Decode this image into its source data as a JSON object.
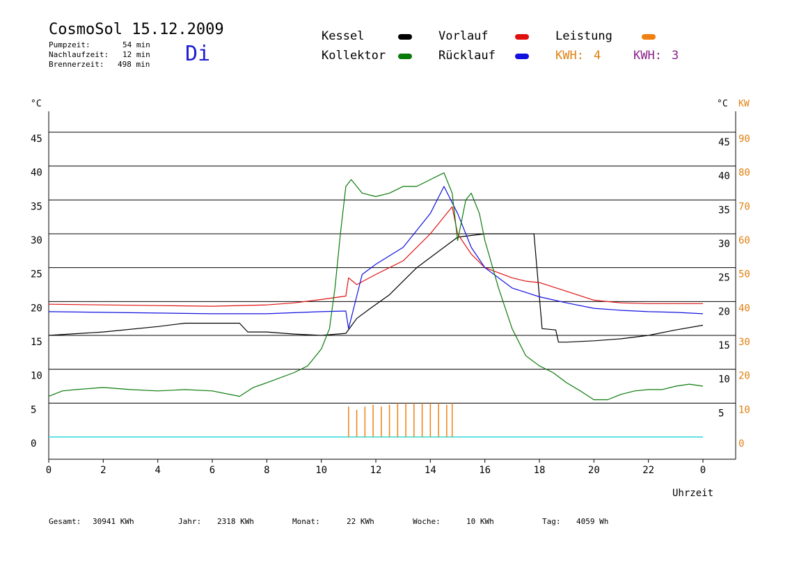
{
  "header": {
    "title": "CosmoSol 15.12.2009",
    "day": "Di",
    "stats": [
      {
        "label": "Pumpzeit:",
        "value": "54 min"
      },
      {
        "label": "Nachlaufzeit:",
        "value": "12 min"
      },
      {
        "label": "Brennerzeit:",
        "value": "498 min"
      }
    ]
  },
  "legend": [
    {
      "label": "Kessel",
      "color": "#000000"
    },
    {
      "label": "Kollektor",
      "color": "#0a7a0a"
    },
    {
      "label": "Vorlauf",
      "color": "#e01010"
    },
    {
      "label": "Rücklauf",
      "color": "#1010e0"
    },
    {
      "label": "Leistung",
      "color": "#f08010"
    }
  ],
  "kwh": [
    {
      "label": "KWH:",
      "value": "4",
      "color": "#e08010"
    },
    {
      "label": "KWH:",
      "value": "3",
      "color": "#8a208a"
    }
  ],
  "axes": {
    "left_unit": "°C",
    "right_unit": "°C",
    "right2_unit": "KW",
    "y_ticks": [
      0,
      5,
      10,
      15,
      20,
      25,
      30,
      35,
      40,
      45
    ],
    "y_ticks_right": [
      5,
      10,
      15,
      20,
      25,
      30,
      35,
      40,
      45
    ],
    "kw_ticks": [
      0,
      10,
      20,
      30,
      40,
      50,
      60,
      70,
      80,
      90
    ],
    "x_ticks": [
      "0",
      "2",
      "4",
      "6",
      "8",
      "10",
      "12",
      "14",
      "16",
      "18",
      "20",
      "22",
      "0"
    ],
    "x_label": "Uhrzeit",
    "axis_color": "#000000",
    "kw_color": "#e08010"
  },
  "footer": [
    {
      "label": "Gesamt:",
      "value": "30941 KWh"
    },
    {
      "label": "Jahr:",
      "value": "2318 KWh"
    },
    {
      "label": "Monat:",
      "value": "22 KWh"
    },
    {
      "label": "Woche:",
      "value": "10 KWh"
    },
    {
      "label": "Tag:",
      "value": "4059 Wh"
    }
  ],
  "chart_data": {
    "type": "line",
    "title": "CosmoSol 15.12.2009",
    "xlabel": "Uhrzeit",
    "ylabel": "°C",
    "y2label": "KW",
    "xlim": [
      0,
      24
    ],
    "ylim": [
      0,
      45
    ],
    "y2lim": [
      0,
      90
    ],
    "grid": true,
    "series": [
      {
        "name": "Kessel",
        "color": "#000000",
        "x": [
          0,
          2,
          4,
          5,
          6,
          7,
          7.3,
          8,
          9,
          10,
          10.9,
          11.3,
          11.8,
          12.5,
          13,
          13.5,
          14,
          14.5,
          15,
          16,
          17,
          17.8,
          18.1,
          18.6,
          18.7,
          19,
          20,
          21,
          22,
          23,
          24
        ],
        "y": [
          15,
          15.5,
          16.3,
          16.8,
          16.8,
          16.8,
          15.5,
          15.5,
          15.2,
          15,
          15.3,
          17.5,
          19,
          21,
          23,
          25,
          26.5,
          28,
          29.5,
          30,
          30,
          30,
          16,
          15.8,
          14,
          14,
          14.2,
          14.5,
          15,
          15.8,
          16.5
        ]
      },
      {
        "name": "Vorlauf",
        "color": "#e01010",
        "x": [
          0,
          2,
          4,
          6,
          8,
          9,
          10,
          10.9,
          11,
          11.3,
          12,
          13,
          14,
          14.8,
          15,
          15.5,
          16,
          17,
          17.5,
          18,
          19,
          20,
          21,
          22,
          23,
          24
        ],
        "y": [
          19.6,
          19.5,
          19.4,
          19.3,
          19.5,
          19.8,
          20.3,
          20.8,
          23.5,
          22.5,
          24,
          26,
          30,
          34,
          30,
          27,
          25,
          23.5,
          23,
          22.8,
          21.5,
          20.2,
          19.8,
          19.7,
          19.7,
          19.7
        ]
      },
      {
        "name": "Rücklauf",
        "color": "#1010e0",
        "x": [
          0,
          2,
          4,
          6,
          8,
          10,
          10.9,
          11,
          11.5,
          12,
          13,
          14,
          14.5,
          15,
          15.5,
          16,
          17,
          18,
          19,
          20,
          21,
          22,
          23,
          24
        ],
        "y": [
          18.5,
          18.4,
          18.3,
          18.2,
          18.2,
          18.5,
          18.6,
          16,
          24,
          25.5,
          28,
          33,
          37,
          33,
          28,
          25,
          22,
          20.7,
          19.8,
          19,
          18.7,
          18.5,
          18.4,
          18.2
        ]
      },
      {
        "name": "Kollektor",
        "color": "#0a7a0a",
        "x": [
          0,
          0.5,
          1,
          2,
          3,
          4,
          5,
          6,
          7,
          7.5,
          8,
          9,
          9.5,
          10,
          10.3,
          10.5,
          10.7,
          10.9,
          11.1,
          11.5,
          12,
          12.5,
          13,
          13.5,
          14,
          14.5,
          14.8,
          15,
          15.3,
          15.5,
          15.8,
          16,
          16.5,
          17,
          17.5,
          18,
          18.5,
          19,
          19.5,
          20,
          20.5,
          21,
          21.5,
          22,
          22.5,
          23,
          23.5,
          24
        ],
        "y": [
          6,
          6.8,
          7,
          7.3,
          7,
          6.8,
          7,
          6.8,
          6,
          7.3,
          8,
          9.5,
          10.5,
          13,
          16,
          22,
          30,
          37,
          38,
          36,
          35.5,
          36,
          37,
          37,
          38,
          39,
          36,
          29,
          35,
          36,
          33,
          29,
          22,
          16,
          12,
          10.5,
          9.5,
          8,
          6.8,
          5.5,
          5.5,
          6.3,
          6.8,
          7,
          7,
          7.5,
          7.8,
          7.5
        ]
      },
      {
        "name": "Leistung",
        "color": "#f08010",
        "axis": "KW",
        "x": [
          11,
          11.3,
          11.6,
          11.9,
          12.2,
          12.5,
          12.8,
          13.1,
          13.4,
          13.7,
          14,
          14.3,
          14.6,
          14.8
        ],
        "y": [
          9,
          8,
          9,
          9.5,
          9,
          9.5,
          10,
          10,
          10,
          10,
          10,
          10,
          9.5,
          10
        ]
      }
    ]
  }
}
